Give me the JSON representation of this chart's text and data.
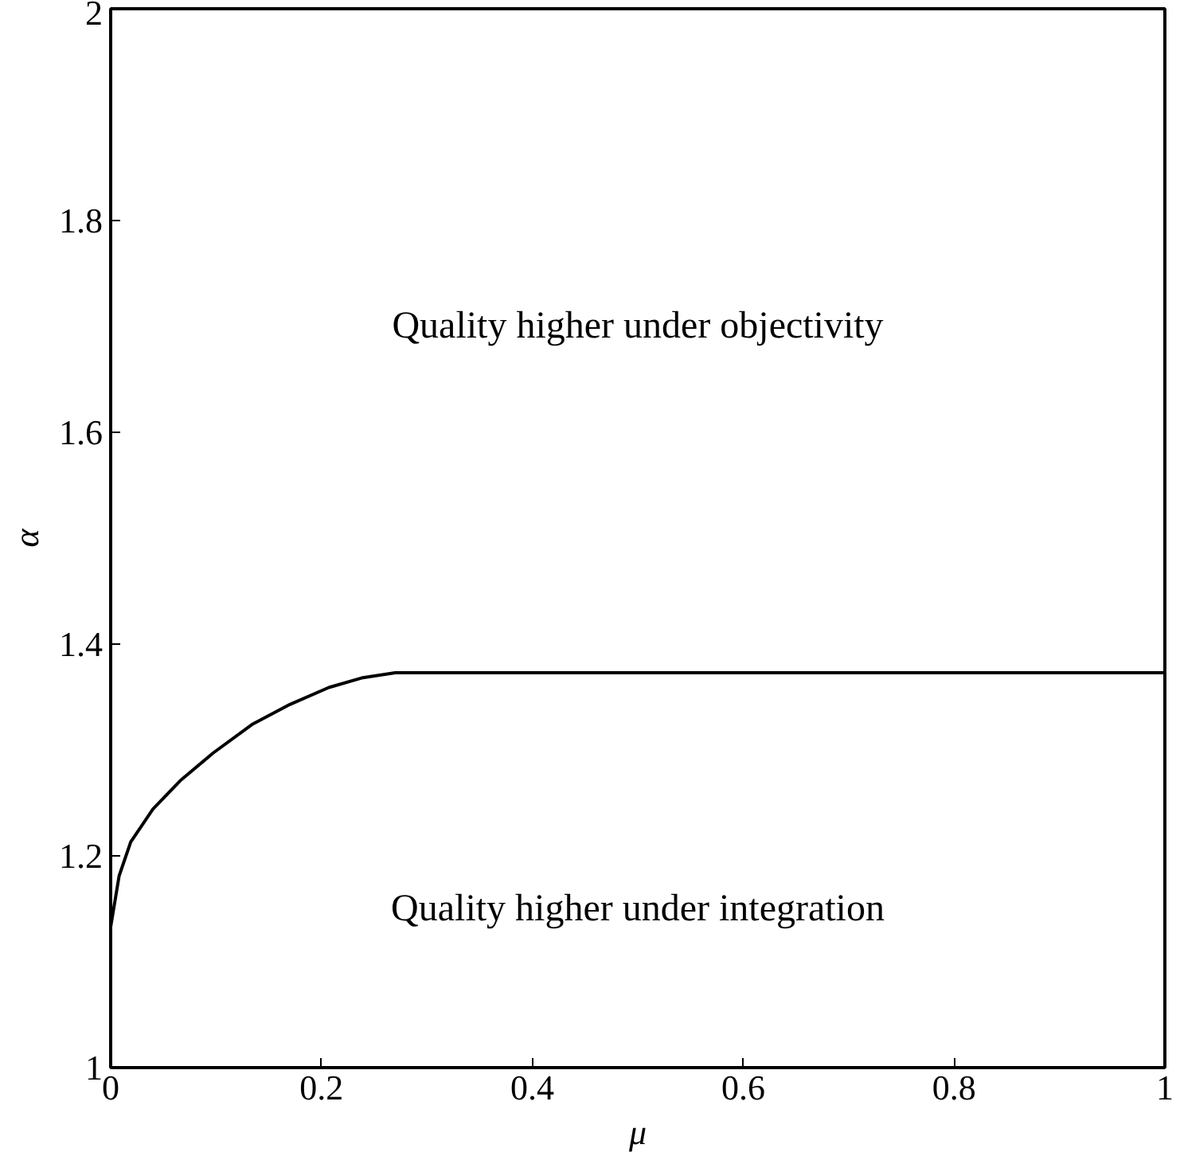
{
  "chart_data": {
    "type": "line",
    "xlabel": "μ",
    "ylabel": "α",
    "x": [
      0,
      0.008,
      0.019,
      0.04,
      0.066,
      0.097,
      0.134,
      0.17,
      0.207,
      0.238,
      0.27,
      1
    ],
    "series": [
      {
        "color": "#000000",
        "values": [
          1.133,
          1.181,
          1.213,
          1.244,
          1.271,
          1.297,
          1.324,
          1.343,
          1.359,
          1.368,
          1.373,
          1.373
        ]
      }
    ],
    "xlim": [
      0,
      1
    ],
    "ylim": [
      1,
      2
    ],
    "xticks": [
      0,
      0.2,
      0.4,
      0.6,
      0.8,
      1
    ],
    "yticks": [
      1,
      1.2,
      1.4,
      1.6,
      1.8,
      2
    ],
    "annotations": [
      "Quality higher under objectivity",
      "Quality higher under integration"
    ],
    "grid": false,
    "marker": "none",
    "line_style": "solid"
  }
}
